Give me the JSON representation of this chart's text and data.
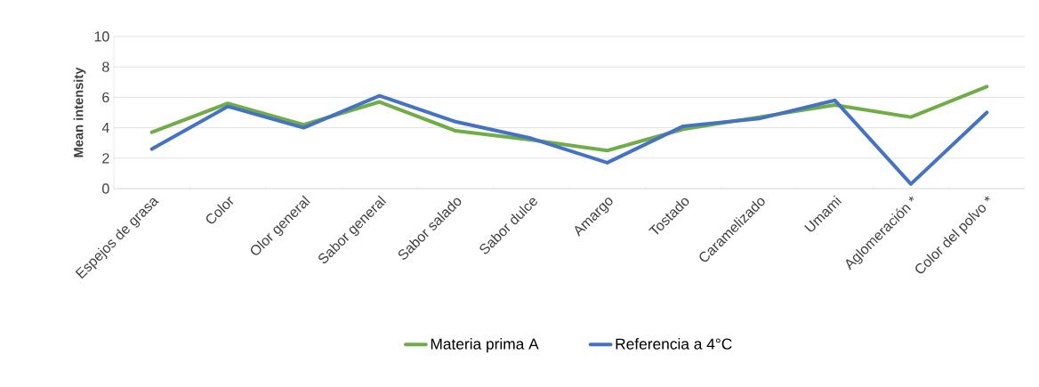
{
  "chart_data": {
    "type": "line",
    "ylabel": "Mean intensity",
    "categories": [
      "Espejos de grasa",
      "Color",
      "Olor general",
      "Sabor general",
      "Sabor salado",
      "Sabor dulce",
      "Amargo",
      "Tostado",
      "Caramelizado",
      "Umami",
      "Aglomeración *",
      "Color del polvo *"
    ],
    "series": [
      {
        "name": "Materia prima A",
        "color": "#70ad47",
        "values": [
          3.7,
          5.6,
          4.2,
          5.7,
          3.8,
          3.2,
          2.5,
          3.9,
          4.7,
          5.5,
          4.7,
          6.7
        ]
      },
      {
        "name": "Referencia a 4°C",
        "color": "#4472c4",
        "values": [
          2.6,
          5.4,
          4.0,
          6.1,
          4.4,
          3.3,
          1.7,
          4.1,
          4.6,
          5.8,
          0.3,
          5.0
        ]
      }
    ],
    "ylim": [
      0,
      10
    ],
    "yticks": [
      0,
      2,
      4,
      6,
      8,
      10
    ],
    "grid": "y",
    "legend": "bottom",
    "marker": "none",
    "line_style": "solid"
  }
}
